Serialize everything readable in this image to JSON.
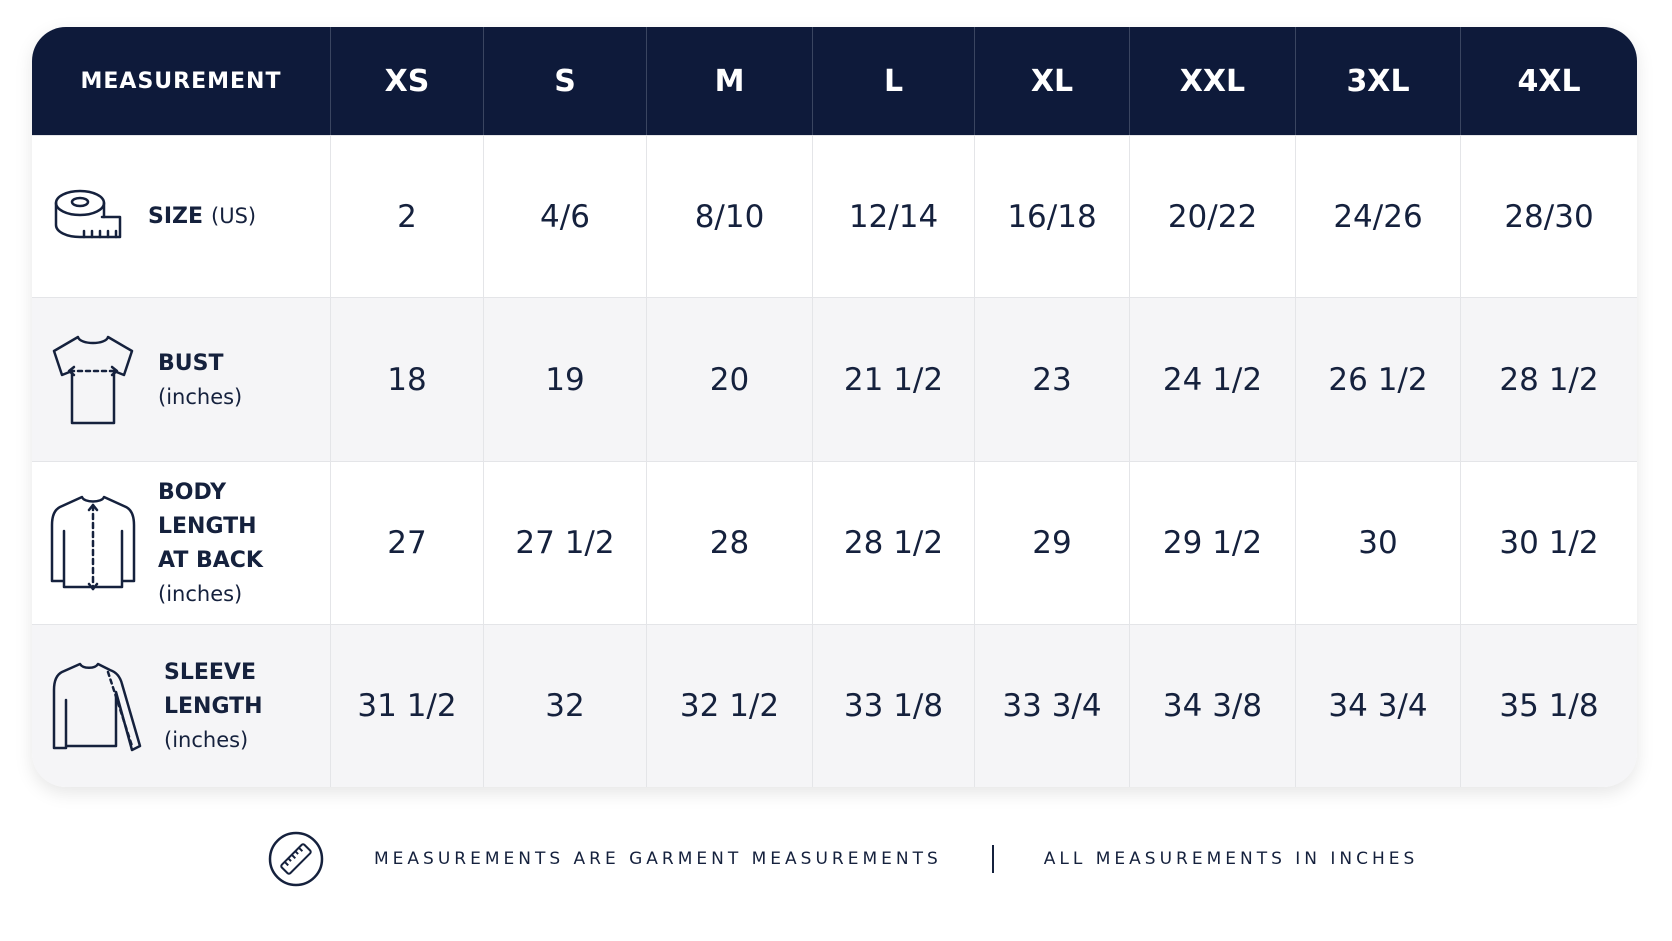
{
  "header": {
    "columns": [
      "MEASUREMENT",
      "XS",
      "S",
      "M",
      "L",
      "XL",
      "XXL",
      "3XL",
      "4XL"
    ]
  },
  "table": {
    "rows": [
      {
        "title": [
          "SIZE"
        ],
        "unit": "(US)",
        "values": [
          "2",
          "4/6",
          "8/10",
          "12/14",
          "16/18",
          "20/22",
          "24/26",
          "28/30"
        ]
      },
      {
        "title": [
          "BUST"
        ],
        "unit": "(inches)",
        "values": [
          "18",
          "19",
          "20",
          "21 1/2",
          "23",
          "24 1/2",
          "26 1/2",
          "28 1/2"
        ]
      },
      {
        "title": [
          "BODY LENGTH",
          "AT BACK"
        ],
        "unit": "(inches)",
        "values": [
          "27",
          "27 1/2",
          "28",
          "28 1/2",
          "29",
          "29 1/2",
          "30",
          "30 1/2"
        ]
      },
      {
        "title": [
          "SLEEVE LENGTH"
        ],
        "unit": "(inches)",
        "values": [
          "31 1/2",
          "32",
          "32 1/2",
          "33 1/8",
          "33 3/4",
          "34 3/8",
          "34 3/4",
          "35 1/8"
        ]
      }
    ]
  },
  "footer": {
    "notes": [
      "MEASUREMENTS ARE GARMENT MEASUREMENTS",
      "ALL MEASUREMENTS IN INCHES"
    ]
  }
}
